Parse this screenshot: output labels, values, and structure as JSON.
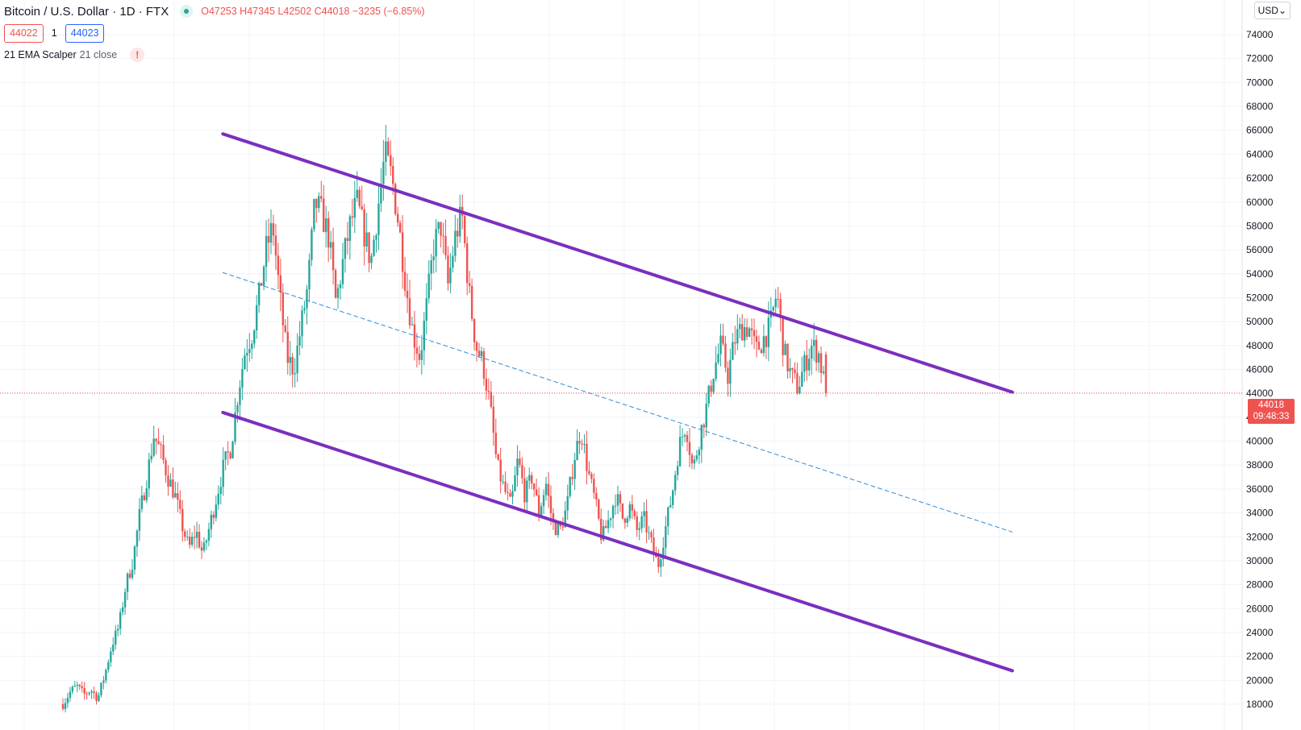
{
  "header": {
    "symbol": "Bitcoin / U.S. Dollar · 1D · FTX",
    "ohlc": "O47253  H47345  L42502  C44018  −3235  (−6.85%)",
    "sell_price": "44022",
    "spread": "1",
    "buy_price": "44023",
    "indicator_name": "21 EMA Scalper",
    "indicator_params": "21 close",
    "warning_icon": "!"
  },
  "price_axis": {
    "currency": "USD",
    "last_price": "44018",
    "countdown": "09:48:33"
  },
  "colors": {
    "up": "#26a69a",
    "down": "#ef5350",
    "channel": "#7b2fbe",
    "midline": "#2f8bd6",
    "grid": "#f0f3fa",
    "last_price_line": "#ef5350"
  },
  "chart_data": {
    "type": "candlestick",
    "y_axis": {
      "ticks": [
        18000,
        20000,
        22000,
        24000,
        26000,
        28000,
        30000,
        32000,
        34000,
        36000,
        38000,
        40000,
        42000,
        44000,
        46000,
        48000,
        50000,
        52000,
        54000,
        56000,
        58000,
        60000,
        62000,
        64000,
        66000,
        68000,
        70000,
        72000,
        74000
      ],
      "range": [
        17800,
        75500
      ]
    },
    "last_close": 44018,
    "price_path": [
      18000,
      19000,
      19500,
      18800,
      19200,
      18500,
      20500,
      23000,
      24500,
      28000,
      30000,
      34000,
      37000,
      40500,
      39000,
      37000,
      35500,
      33000,
      31000,
      32500,
      30500,
      33000,
      35500,
      38000,
      39500,
      44000,
      47500,
      49000,
      52000,
      56000,
      58000,
      52000,
      47000,
      46000,
      49500,
      53000,
      60000,
      59000,
      57000,
      51500,
      55000,
      58000,
      60000,
      57500,
      55000,
      59500,
      64000,
      62000,
      58000,
      53000,
      49000,
      47000,
      51500,
      56500,
      58000,
      53000,
      57000,
      59000,
      52500,
      48000,
      46500,
      43000,
      38000,
      36000,
      34500,
      38500,
      35500,
      37000,
      34000,
      36500,
      33000,
      32500,
      34500,
      38500,
      41000,
      37500,
      35000,
      31800,
      33500,
      35500,
      33500,
      34500,
      32500,
      33500,
      31500,
      29500,
      32500,
      35500,
      39500,
      41500,
      37500,
      40500,
      43000,
      46000,
      48000,
      45500,
      48500,
      49500,
      49500,
      47500,
      48500,
      49500,
      52500,
      47500,
      45500,
      44500,
      46500,
      48000,
      47253,
      44018
    ],
    "annotations": [
      {
        "name": "channel-upper",
        "style": "solid",
        "from": [
          0.1713,
          65700
        ],
        "to": [
          0.7781,
          44100
        ]
      },
      {
        "name": "channel-lower",
        "style": "solid",
        "from": [
          0.1713,
          42400
        ],
        "to": [
          0.7781,
          20800
        ]
      },
      {
        "name": "channel-mid",
        "style": "dashed",
        "from": [
          0.1713,
          54100
        ],
        "to": [
          0.7781,
          32400
        ]
      }
    ]
  }
}
